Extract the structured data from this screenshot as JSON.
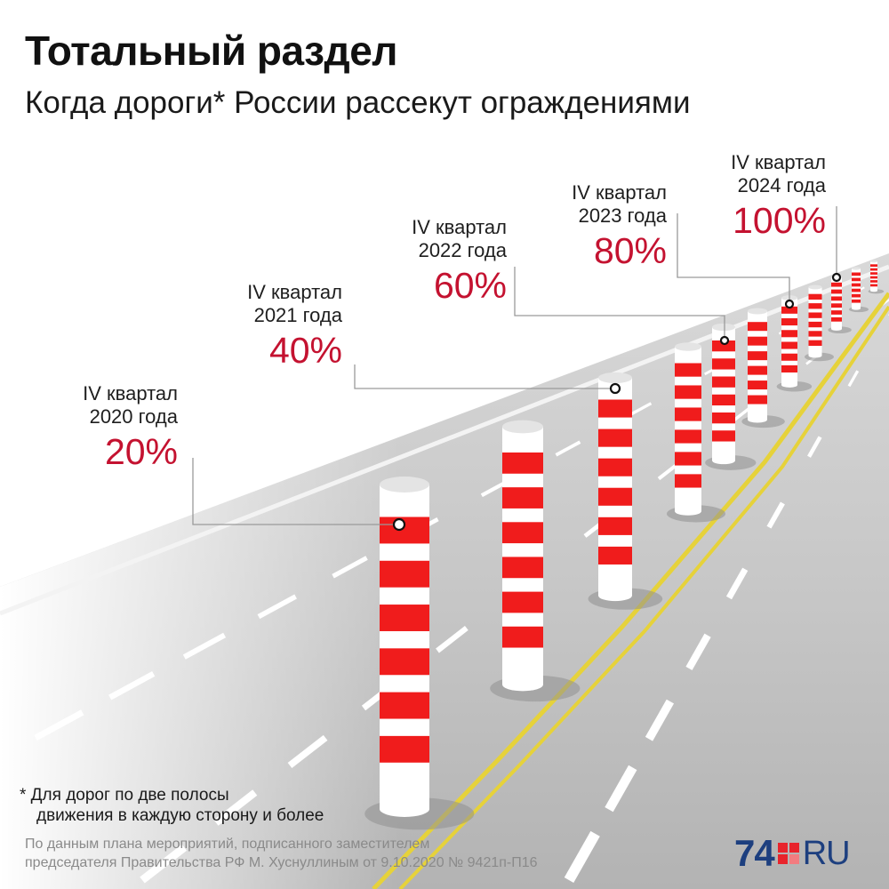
{
  "title": "Тотальный раздел",
  "subtitle": "Когда дороги* России рассекут ограждениями",
  "milestones": [
    {
      "period": "IV квартал",
      "year": "2020 года",
      "percent": "20%"
    },
    {
      "period": "IV квартал",
      "year": "2021 года",
      "percent": "40%"
    },
    {
      "period": "IV квартал",
      "year": "2022 года",
      "percent": "60%"
    },
    {
      "period": "IV квартал",
      "year": "2023 года",
      "percent": "80%"
    },
    {
      "period": "IV квартал",
      "year": "2024 года",
      "percent": "100%"
    }
  ],
  "footnote": {
    "line1": "* Для дорог по две полосы",
    "line2": "движения в каждую сторону и более"
  },
  "source": {
    "line1": "По данным плана мероприятий, подписанного заместителем",
    "line2": "председателя Правительства РФ М. Хуснуллиным от 9.10.2020 № 9421п-П16"
  },
  "logo": {
    "number": "74",
    "suffix": "RU"
  },
  "colors": {
    "accent": "#c41230",
    "post_red": "#f01c1c",
    "road": "#b9b9b9",
    "centerline": "#e6d23a",
    "logo_blue": "#1d3f7f"
  },
  "icons": [
    "road-illustration",
    "bollard-icon",
    "marker-dot-icon",
    "logo-squares-icon"
  ]
}
